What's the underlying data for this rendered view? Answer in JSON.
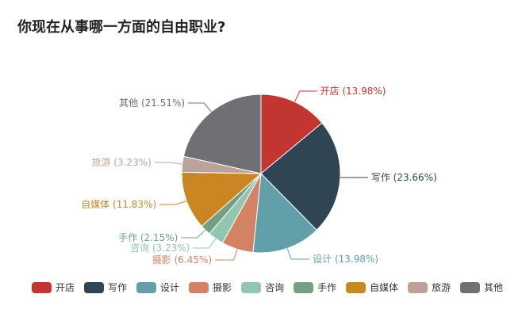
{
  "chart_data": {
    "type": "pie",
    "title": "你现在从事哪一方面的自由职业?",
    "categories": [
      "开店",
      "写作",
      "设计",
      "摄影",
      "咨询",
      "手作",
      "自媒体",
      "旅游",
      "其他"
    ],
    "values": [
      13.98,
      23.66,
      13.98,
      6.45,
      3.23,
      2.15,
      11.83,
      3.23,
      21.51
    ],
    "labels": [
      "开店 (13.98%)",
      "写作 (23.66%)",
      "设计 (13.98%)",
      "摄影 (6.45%)",
      "咨询 (3.23%)",
      "手作 (2.15%)",
      "自媒体 (11.83%)",
      "旅游 (3.23%)",
      "其他 (21.51%)"
    ],
    "colors": [
      "#c23531",
      "#2f4554",
      "#61a0a8",
      "#d48265",
      "#91c7ae",
      "#749f83",
      "#ca8622",
      "#bda29a",
      "#6e7074"
    ],
    "legend_position": "bottom"
  }
}
